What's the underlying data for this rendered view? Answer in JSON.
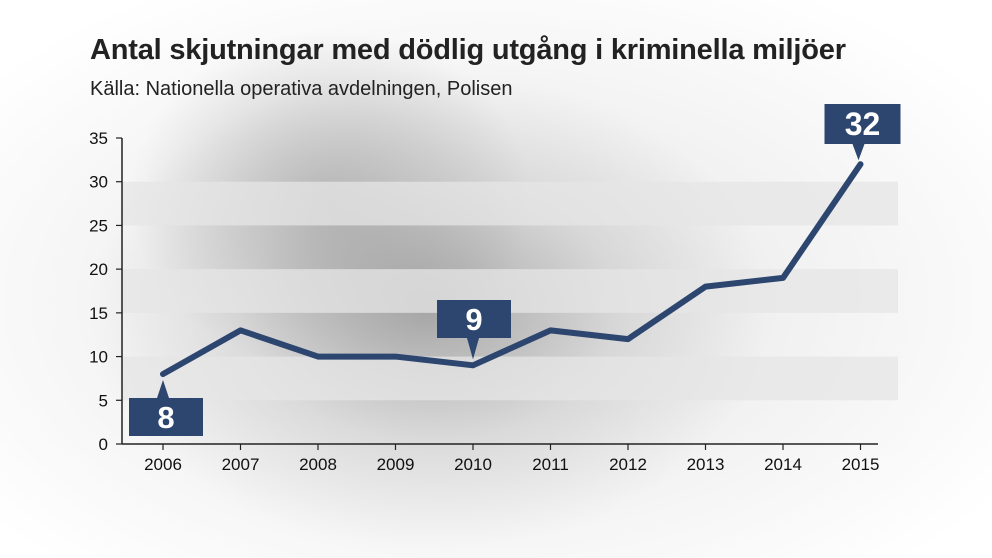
{
  "header": {
    "title": "Antal skjutningar med dödlig utgång i kriminella miljöer",
    "subtitle": "Källa: Nationella operativa avdelningen, Polisen"
  },
  "colors": {
    "line": "#2c4670",
    "callout": "#2c4670",
    "band": "#e6e6e6",
    "axis": "#222222"
  },
  "chart_data": {
    "type": "line",
    "title": "Antal skjutningar med dödlig utgång i kriminella miljöer",
    "subtitle": "Källa: Nationella operativa avdelningen, Polisen",
    "x": [
      "2006",
      "2007",
      "2008",
      "2009",
      "2010",
      "2011",
      "2012",
      "2013",
      "2014",
      "2015"
    ],
    "series": [
      {
        "values": [
          8,
          13,
          10,
          10,
          9,
          13,
          12,
          18,
          19,
          32
        ]
      }
    ],
    "ylim": [
      0,
      35
    ],
    "yticks": [
      "0",
      "5",
      "10",
      "15",
      "20",
      "25",
      "30",
      "35"
    ],
    "grid": "alternating horizontal bands",
    "annotations": [
      {
        "x": "2006",
        "label": "8"
      },
      {
        "x": "2010",
        "label": "9"
      },
      {
        "x": "2015",
        "label": "32"
      }
    ]
  }
}
